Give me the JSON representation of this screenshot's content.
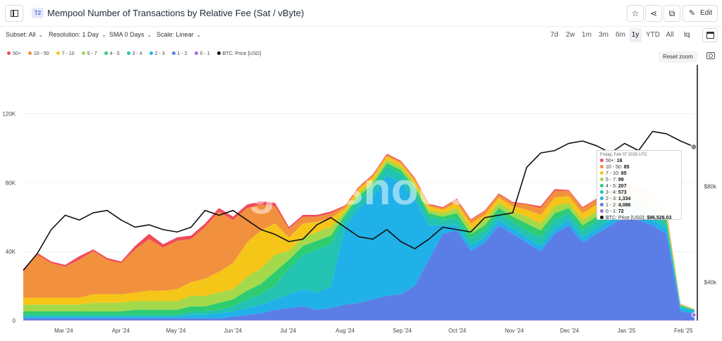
{
  "header": {
    "badge": "T2",
    "title": "Mempool Number of Transactions by Relative Fee (Sat / vByte)",
    "edit_label": "Edit",
    "star_icon": "☆",
    "share_icon": "⋖",
    "copy_icon": "⧉",
    "pencil_icon": "✎"
  },
  "controls": {
    "subset": "Subset: All",
    "resolution": "Resolution: 1 Day",
    "sma": "SMA 0 Days",
    "scale": "Scale: Linear",
    "ranges": [
      "7d",
      "2w",
      "1m",
      "3m",
      "6m",
      "1y",
      "YTD",
      "All"
    ],
    "active_range": "1y",
    "zoom_select_label": "Iq"
  },
  "reset_zoom": "Reset zoom",
  "watermark": "glassnode",
  "tooltip": {
    "date": "Friday, Feb 07 2025 UTC",
    "rows": [
      {
        "label": "50+:",
        "value": "16",
        "color": "#ef4a5c"
      },
      {
        "label": "10 - 50:",
        "value": "85",
        "color": "#f2913d"
      },
      {
        "label": "7 - 10:",
        "value": "85",
        "color": "#f5c518"
      },
      {
        "label": "5 - 7:",
        "value": "99",
        "color": "#a3d94a"
      },
      {
        "label": "4 - 5:",
        "value": "207",
        "color": "#2ecc71"
      },
      {
        "label": "3 - 4:",
        "value": "573",
        "color": "#22c3b0"
      },
      {
        "label": "2 - 3:",
        "value": "1,334",
        "color": "#20b1e8"
      },
      {
        "label": "1 - 2:",
        "value": "4,086",
        "color": "#5b7ee6"
      },
      {
        "label": "0 - 1:",
        "value": "72",
        "color": "#a46ae0"
      },
      {
        "label": "BTC: Price [USD]:",
        "value": "$96,528.03",
        "color": "#111111"
      }
    ]
  },
  "chart_data": {
    "type": "area",
    "title": "Mempool Number of Transactions by Relative Fee (Sat / vByte)",
    "x": [
      "2024-02-08",
      "2024-02-20",
      "2024-03-01",
      "2024-03-10",
      "2024-03-18",
      "2024-03-25",
      "2024-04-01",
      "2024-04-08",
      "2024-04-15",
      "2024-04-20",
      "2024-04-27",
      "2024-05-05",
      "2024-05-12",
      "2024-05-20",
      "2024-05-28",
      "2024-06-05",
      "2024-06-13",
      "2024-06-20",
      "2024-06-27",
      "2024-07-04",
      "2024-07-12",
      "2024-07-19",
      "2024-07-26",
      "2024-08-02",
      "2024-08-10",
      "2024-08-18",
      "2024-08-26",
      "2024-09-03",
      "2024-09-10",
      "2024-09-18",
      "2024-09-26",
      "2024-10-04",
      "2024-10-12",
      "2024-10-20",
      "2024-10-28",
      "2024-11-05",
      "2024-11-12",
      "2024-11-20",
      "2024-11-28",
      "2024-12-05",
      "2024-12-12",
      "2024-12-20",
      "2024-12-28",
      "2025-01-05",
      "2025-01-12",
      "2025-01-20",
      "2025-01-28",
      "2025-02-03",
      "2025-02-07"
    ],
    "x_tick_labels": [
      "Mar '24",
      "Apr '24",
      "May '24",
      "Jun '24",
      "Jul '24",
      "Aug '24",
      "Sep '24",
      "Oct '24",
      "Nov '24",
      "Dec '24",
      "Jan '25",
      "Feb '25"
    ],
    "series": [
      {
        "name": "0 - 1",
        "color": "#a46ae0",
        "values": [
          0.3,
          0.3,
          0.3,
          0.3,
          0.3,
          0.3,
          0.3,
          0.3,
          0.3,
          0.3,
          0.3,
          0.3,
          0.3,
          0.3,
          0.3,
          0.3,
          0.3,
          0.3,
          0.3,
          0.3,
          0.3,
          0.3,
          0.3,
          0.3,
          0.3,
          0.3,
          0.3,
          0.3,
          0.3,
          0.3,
          0.3,
          0.3,
          0.3,
          0.3,
          0.3,
          0.3,
          0.3,
          0.3,
          0.3,
          0.3,
          0.3,
          0.3,
          0.3,
          0.3,
          0.3,
          0.3,
          0.3,
          0.3,
          0.1
        ]
      },
      {
        "name": "1 - 2",
        "color": "#5b7ee6",
        "values": [
          1,
          1,
          1,
          1,
          1,
          1,
          1,
          1,
          1,
          1,
          1,
          1,
          1,
          1,
          1,
          2,
          3,
          4,
          6,
          7,
          8,
          6,
          7,
          9,
          10,
          12,
          14,
          15,
          20,
          35,
          50,
          52,
          40,
          45,
          55,
          50,
          45,
          40,
          50,
          55,
          45,
          50,
          55,
          60,
          58,
          55,
          50,
          5,
          4.1
        ]
      },
      {
        "name": "2 - 3",
        "color": "#20b1e8",
        "values": [
          1,
          1,
          1,
          1,
          1,
          1,
          1,
          1,
          1,
          1,
          1,
          1,
          2,
          2,
          3,
          3,
          4,
          5,
          6,
          8,
          10,
          10,
          12,
          45,
          55,
          60,
          70,
          65,
          50,
          20,
          5,
          3,
          3,
          3,
          3,
          3,
          3,
          3,
          3,
          3,
          3,
          3,
          3,
          3,
          3,
          3,
          3,
          2,
          1.3
        ]
      },
      {
        "name": "3 - 4",
        "color": "#22c3b0",
        "values": [
          1,
          1,
          1,
          1,
          1,
          1,
          1,
          1,
          1,
          1,
          1,
          1,
          2,
          2,
          2,
          3,
          5,
          6,
          8,
          15,
          20,
          25,
          25,
          5,
          5,
          5,
          5,
          5,
          5,
          5,
          3,
          4,
          4,
          4,
          4,
          4,
          4,
          5,
          5,
          4,
          4,
          4,
          4,
          4,
          4,
          4,
          3,
          1,
          0.6
        ]
      },
      {
        "name": "4 - 5",
        "color": "#2ecc71",
        "values": [
          2,
          2,
          2,
          2,
          2,
          2,
          2,
          2,
          3,
          3,
          3,
          3,
          3,
          3,
          4,
          4,
          5,
          6,
          8,
          5,
          5,
          5,
          5,
          2,
          2,
          2,
          2,
          2,
          2,
          2,
          2,
          3,
          3,
          3,
          3,
          3,
          4,
          4,
          4,
          3,
          3,
          3,
          3,
          3,
          3,
          3,
          2,
          0.5,
          0.2
        ]
      },
      {
        "name": "5 - 7",
        "color": "#a3d94a",
        "values": [
          4,
          4,
          4,
          4,
          4,
          5,
          5,
          5,
          5,
          5,
          5,
          5,
          6,
          6,
          6,
          6,
          8,
          9,
          10,
          5,
          5,
          5,
          5,
          2,
          2,
          2,
          2,
          2,
          2,
          2,
          2,
          3,
          3,
          3,
          3,
          3,
          4,
          4,
          4,
          3,
          3,
          3,
          3,
          3,
          3,
          3,
          2,
          0.3,
          0.1
        ]
      },
      {
        "name": "7 - 10",
        "color": "#f5c518",
        "values": [
          4,
          4,
          4,
          4,
          4,
          5,
          5,
          5,
          5,
          6,
          6,
          7,
          8,
          10,
          12,
          15,
          20,
          22,
          18,
          8,
          8,
          6,
          5,
          2,
          2,
          2,
          2,
          2,
          2,
          2,
          2,
          3,
          3,
          3,
          3,
          3,
          4,
          5,
          5,
          4,
          4,
          4,
          4,
          3,
          3,
          3,
          2,
          0.3,
          0.1
        ]
      },
      {
        "name": "10 - 50",
        "color": "#f2913d",
        "values": [
          15,
          25,
          20,
          18,
          22,
          25,
          20,
          18,
          25,
          30,
          25,
          28,
          25,
          30,
          35,
          25,
          20,
          15,
          10,
          5,
          4,
          3,
          3,
          1,
          1,
          1,
          1,
          1,
          1,
          1,
          1,
          2,
          2,
          2,
          2,
          2,
          3,
          4,
          4,
          3,
          3,
          3,
          3,
          2,
          2,
          2,
          1,
          0.2,
          0.1
        ]
      },
      {
        "name": "50+",
        "color": "#ef4a5c",
        "values": [
          1,
          1,
          1,
          1,
          2,
          1,
          1,
          1,
          2,
          3,
          2,
          2,
          2,
          2,
          2,
          2,
          2,
          2,
          2,
          1,
          1,
          1,
          1,
          0.5,
          0.5,
          0.5,
          0.5,
          0.5,
          0.5,
          0.5,
          0.5,
          0.5,
          0.5,
          0.5,
          0.5,
          0.5,
          0.5,
          1,
          1,
          0.5,
          0.5,
          0.5,
          0.5,
          0.5,
          0.5,
          0.5,
          0.5,
          0.1,
          0
        ]
      }
    ],
    "series_unit": "thousands",
    "price_series": {
      "name": "BTC: Price [USD]",
      "color": "#111111",
      "values": [
        45000,
        52000,
        62000,
        68000,
        66000,
        69000,
        70000,
        66000,
        63000,
        64000,
        62000,
        61000,
        63000,
        70000,
        68000,
        70000,
        66000,
        62000,
        60000,
        57000,
        58000,
        64000,
        67000,
        63000,
        59000,
        58000,
        62000,
        57000,
        54000,
        58000,
        63000,
        62000,
        61000,
        67000,
        68000,
        69000,
        88000,
        94000,
        95000,
        98000,
        99000,
        97000,
        94000,
        98000,
        95000,
        103000,
        102000,
        99000,
        96528
      ]
    },
    "ylim_left": [
      0,
      150000
    ],
    "y_ticks_left": [
      "0",
      "40K",
      "80K",
      "120K"
    ],
    "y_ticks_right": [
      "$40k",
      "$80k"
    ],
    "grid": true,
    "legend_position": "top-left"
  }
}
